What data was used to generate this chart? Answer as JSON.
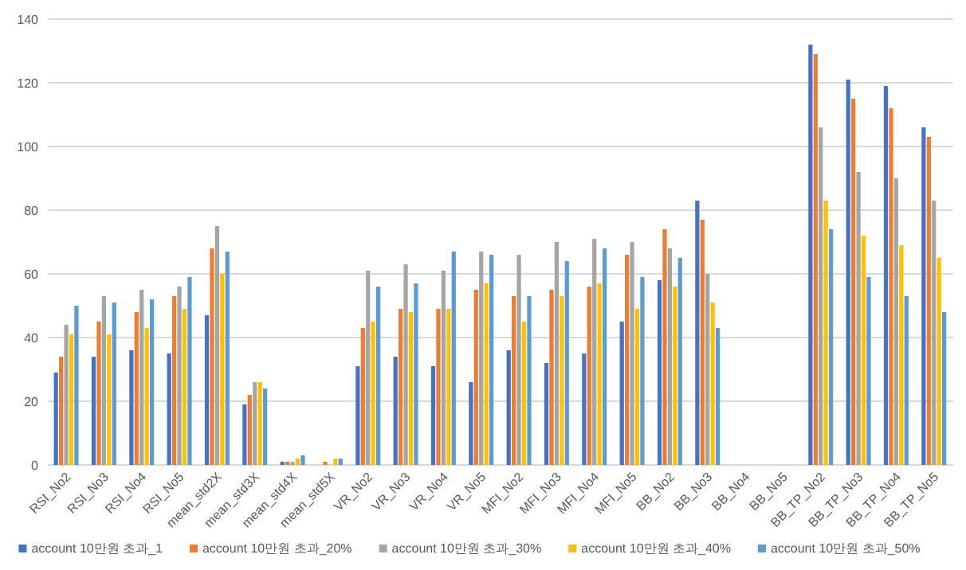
{
  "chart_data": {
    "type": "bar",
    "categories": [
      "RSI_No2",
      "RSI_No3",
      "RSI_No4",
      "RSI_No5",
      "mean_std2X",
      "mean_std3X",
      "mean_std4X",
      "mean_std5X",
      "VR_No2",
      "VR_No3",
      "VR_No4",
      "VR_No5",
      "MFI_No2",
      "MFI_No3",
      "MFI_No4",
      "MFI_No5",
      "BB_No2",
      "BB_No3",
      "BB_No4",
      "BB_No5",
      "BB_TP_No2",
      "BB_TP_No3",
      "BB_TP_No4",
      "BB_TP_No5"
    ],
    "series": [
      {
        "name": "account 10만원 초과_1",
        "color": "#4472c4",
        "values": [
          29,
          34,
          36,
          35,
          47,
          19,
          1,
          0,
          31,
          34,
          31,
          26,
          36,
          32,
          35,
          45,
          58,
          83,
          0,
          0,
          132,
          121,
          119,
          106
        ]
      },
      {
        "name": "account 10만원 초과_20%",
        "color": "#ed7d31",
        "values": [
          34,
          45,
          48,
          53,
          68,
          22,
          1,
          1,
          43,
          49,
          49,
          55,
          53,
          55,
          56,
          66,
          74,
          77,
          0,
          0,
          129,
          115,
          112,
          103
        ]
      },
      {
        "name": "account 10만원 초과_30%",
        "color": "#a5a5a5",
        "values": [
          44,
          53,
          55,
          56,
          75,
          26,
          1,
          0,
          61,
          63,
          61,
          67,
          66,
          70,
          71,
          70,
          68,
          60,
          0,
          0,
          106,
          92,
          90,
          83
        ]
      },
      {
        "name": "account 10만원 초과_40%",
        "color": "#ffc000",
        "values": [
          41,
          41,
          43,
          49,
          60,
          26,
          2,
          2,
          45,
          48,
          49,
          57,
          45,
          53,
          57,
          49,
          56,
          51,
          0,
          0,
          83,
          72,
          69,
          65
        ]
      },
      {
        "name": "account 10만원 초과_50%",
        "color": "#5b9bd5",
        "values": [
          50,
          51,
          52,
          59,
          67,
          24,
          3,
          2,
          56,
          57,
          67,
          66,
          53,
          64,
          68,
          59,
          65,
          43,
          0,
          0,
          74,
          59,
          53,
          48
        ]
      }
    ],
    "ylim": [
      0,
      140
    ],
    "yticks": [
      0,
      20,
      40,
      60,
      80,
      100,
      120,
      140
    ],
    "grid": "y",
    "legend": "bottom"
  }
}
